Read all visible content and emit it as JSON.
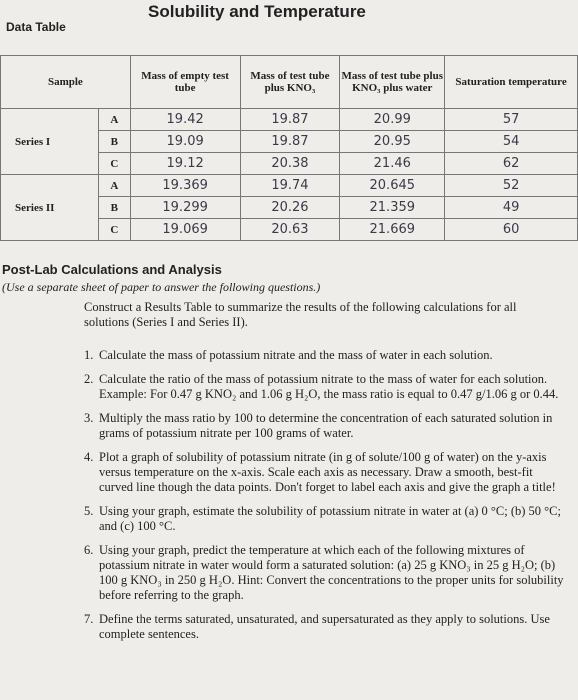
{
  "header": {
    "title": "Solubility and Temperature",
    "subtitle": "Data Table"
  },
  "table": {
    "columns": [
      "Sample",
      "Mass of empty test tube",
      "Mass of test tube plus KNO₃",
      "Mass of test tube plus KNO₃ plus water",
      "Saturation temperature"
    ],
    "groups": [
      {
        "label": "Series I",
        "rows": [
          {
            "sample": "A",
            "cells": [
              "19.42",
              "19.87",
              "20.99",
              "57"
            ]
          },
          {
            "sample": "B",
            "cells": [
              "19.09",
              "19.87",
              "20.95",
              "54"
            ]
          },
          {
            "sample": "C",
            "cells": [
              "19.12",
              "20.38",
              "21.46",
              "62"
            ]
          }
        ]
      },
      {
        "label": "Series II",
        "rows": [
          {
            "sample": "A",
            "cells": [
              "19.369",
              "19.74",
              "20.645",
              "52"
            ]
          },
          {
            "sample": "B",
            "cells": [
              "19.299",
              "20.26",
              "21.359",
              "49"
            ]
          },
          {
            "sample": "C",
            "cells": [
              "19.069",
              "20.63",
              "21.669",
              "60"
            ]
          }
        ]
      }
    ]
  },
  "analysis": {
    "heading": "Post-Lab Calculations and Analysis",
    "note": "(Use a separate sheet of paper to answer the following questions.)",
    "intro": "Construct a Results Table to summarize the results of the following calculations for all solutions (Series I and Series II).",
    "items": [
      {
        "number": "1.",
        "text": "Calculate the mass of potassium nitrate and the mass of water in each solution."
      },
      {
        "number": "2.",
        "text": "Calculate the ratio of the mass of potassium nitrate to the mass of water for each solution. Example: For 0.47 g KNO₂ and 1.06 g H₂O, the mass ratio is equal to 0.47 g/1.06 g or 0.44."
      },
      {
        "number": "3.",
        "text": "Multiply the mass ratio by 100 to determine the concentration of each saturated solution in grams of potassium nitrate per 100 grams of water."
      },
      {
        "number": "4.",
        "text": "Plot a graph of solubility of potassium nitrate (in g of solute/100 g of water) on the y-axis versus temperature on the x-axis. Scale each axis as necessary. Draw a smooth, best-fit curved line though the data points. Don't forget to label each axis and give the graph a title!"
      },
      {
        "number": "5.",
        "text": "Using your graph, estimate the solubility of potassium nitrate in water at (a) 0 °C; (b) 50 °C; and (c) 100 °C."
      },
      {
        "number": "6.",
        "text": "Using your graph, predict the temperature at which each of the following mixtures of potassium nitrate in water would form a saturated solution: (a) 25 g KNO₃ in 25 g H₂O; (b) 100 g KNO₃ in 250 g H₂O. Hint: Convert the concentrations to the proper units for solubility before referring to the graph."
      },
      {
        "number": "7.",
        "text": "Define the terms saturated, unsaturated, and supersaturated as they apply to solutions. Use complete sentences."
      }
    ]
  }
}
